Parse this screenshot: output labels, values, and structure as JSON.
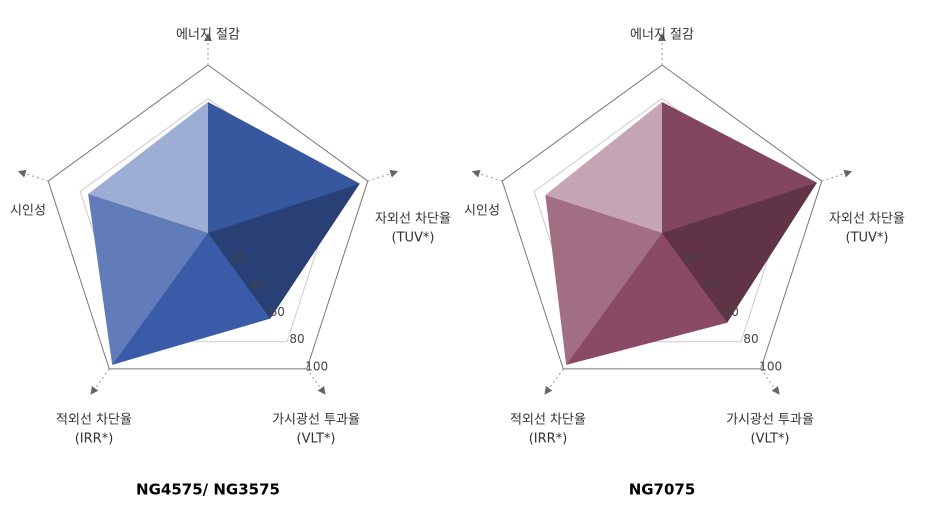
{
  "chart_data": [
    {
      "type": "radar",
      "title": "NG4575/ NG3575",
      "categories": [
        "에너지 절감",
        "자외선 차단율",
        "가시광선 투과율",
        "적외선 차단율",
        "시인성"
      ],
      "category_codes": [
        null,
        "(TUV*)",
        "(VLT*)",
        "(IRR*)",
        null
      ],
      "values": [
        78,
        95,
        63,
        97,
        75
      ],
      "color": "#3a5ca8",
      "rlim": [
        0,
        100
      ],
      "rticks": [
        20,
        40,
        60,
        80,
        100
      ]
    },
    {
      "type": "radar",
      "title": "NG7075",
      "categories": [
        "에너지 절감",
        "자외선 차단율",
        "가시광선 투과율",
        "적외선 차단율",
        "시인성"
      ],
      "category_codes": [
        null,
        "(TUV*)",
        "(VLT*)",
        "(IRR*)",
        null
      ],
      "values": [
        78,
        97,
        66,
        97,
        73
      ],
      "color": "#8a4a66",
      "rlim": [
        0,
        100
      ],
      "rticks": [
        20,
        40,
        60,
        80,
        100
      ]
    }
  ]
}
